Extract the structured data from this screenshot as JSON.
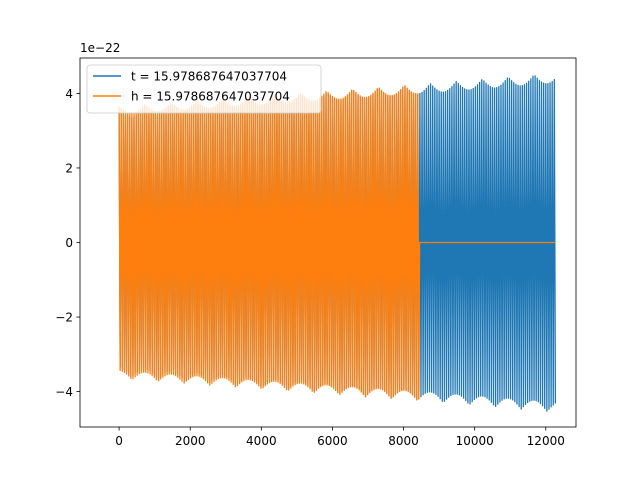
{
  "chart_data": {
    "type": "line",
    "exponent_label": "1e−22",
    "xlim": [
      -1100,
      12850
    ],
    "ylim": [
      -4.95,
      4.95
    ],
    "x_ticks": [
      {
        "value": 0,
        "label": "0"
      },
      {
        "value": 2000,
        "label": "2000"
      },
      {
        "value": 4000,
        "label": "4000"
      },
      {
        "value": 6000,
        "label": "6000"
      },
      {
        "value": 8000,
        "label": "8000"
      },
      {
        "value": 10000,
        "label": "10000"
      },
      {
        "value": 12000,
        "label": "12000"
      }
    ],
    "y_ticks": [
      {
        "value": -4,
        "label": "−4"
      },
      {
        "value": -2,
        "label": "−2"
      },
      {
        "value": 0,
        "label": "0"
      },
      {
        "value": 2,
        "label": "2"
      },
      {
        "value": 4,
        "label": "4"
      }
    ],
    "legend_position": "top-left",
    "grid": false,
    "series": [
      {
        "name": "t = 15.978687647037704",
        "color": "#1f77b4",
        "x_range": [
          0,
          12280
        ],
        "amplitude_start": 3.55,
        "amplitude_end": 4.55,
        "zero_after_x": null,
        "oscillation_period": 60
      },
      {
        "name": "h = 15.978687647037704",
        "color": "#ff7f0e",
        "x_range": [
          0,
          12280
        ],
        "amplitude_start": 3.65,
        "amplitude_end": 4.52,
        "zero_after_x": 8450,
        "oscillation_period": 60
      }
    ]
  }
}
